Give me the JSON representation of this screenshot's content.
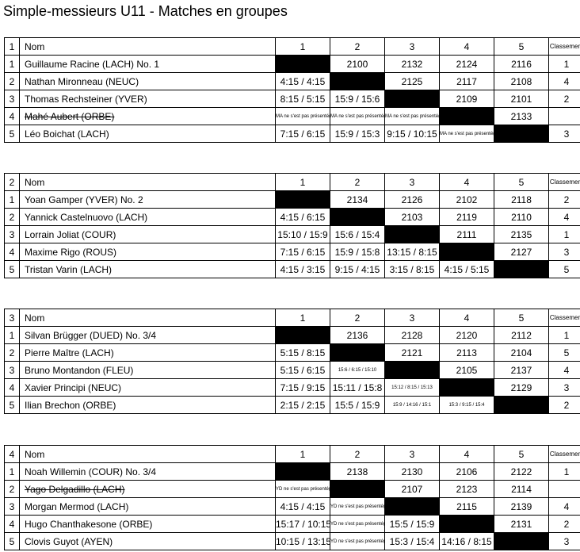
{
  "title": "Simple-messieurs U11 - Matches en groupes",
  "header": {
    "name": "Nom",
    "cols": [
      "1",
      "2",
      "3",
      "4",
      "5"
    ],
    "rank": "Classement"
  },
  "groups": [
    {
      "number": "1",
      "rows": [
        {
          "pos": "1",
          "name": "Guillaume Racine (LACH) No. 1",
          "withdrawn": false,
          "cells": [
            null,
            "2100",
            "2132",
            "2124",
            "2116"
          ],
          "rank": "1"
        },
        {
          "pos": "2",
          "name": "Nathan Mironneau (NEUC)",
          "withdrawn": false,
          "cells": [
            "4:15 / 4:15",
            null,
            "2125",
            "2117",
            "2108"
          ],
          "rank": "4"
        },
        {
          "pos": "3",
          "name": "Thomas Rechsteiner (YVER)",
          "withdrawn": false,
          "cells": [
            "8:15 / 5:15",
            "15:9 / 15:6",
            null,
            "2109",
            "2101"
          ],
          "rank": "2"
        },
        {
          "pos": "4",
          "name": "Mahé Aubert (ORBE)",
          "withdrawn": true,
          "cells": [
            "MA ne s'est pas présenté(e)",
            "MA ne s'est pas présenté(e)",
            "MA ne s'est pas présenté(e)",
            null,
            "2133"
          ],
          "rank": ""
        },
        {
          "pos": "5",
          "name": "Léo Boichat (LACH)",
          "withdrawn": false,
          "cells": [
            "7:15 / 6:15",
            "15:9 / 15:3",
            "9:15 / 10:15",
            "MA ne s'est pas présenté(e)",
            null
          ],
          "rank": "3"
        }
      ]
    },
    {
      "number": "2",
      "rows": [
        {
          "pos": "1",
          "name": "Yoan Gamper (YVER) No. 2",
          "withdrawn": false,
          "cells": [
            null,
            "2134",
            "2126",
            "2102",
            "2118"
          ],
          "rank": "2"
        },
        {
          "pos": "2",
          "name": "Yannick Castelnuovo (LACH)",
          "withdrawn": false,
          "cells": [
            "4:15 / 6:15",
            null,
            "2103",
            "2119",
            "2110"
          ],
          "rank": "4"
        },
        {
          "pos": "3",
          "name": "Lorrain Joliat (COUR)",
          "withdrawn": false,
          "cells": [
            "15:10 / 15:9",
            "15:6 / 15:4",
            null,
            "2111",
            "2135"
          ],
          "rank": "1"
        },
        {
          "pos": "4",
          "name": "Maxime Rigo (ROUS)",
          "withdrawn": false,
          "cells": [
            "7:15 / 6:15",
            "15:9 / 15:8",
            "13:15 / 8:15",
            null,
            "2127"
          ],
          "rank": "3"
        },
        {
          "pos": "5",
          "name": "Tristan Varin (LACH)",
          "withdrawn": false,
          "cells": [
            "4:15 / 3:15",
            "9:15 / 4:15",
            "3:15 / 8:15",
            "4:15 / 5:15",
            null
          ],
          "rank": "5"
        }
      ]
    },
    {
      "number": "3",
      "rows": [
        {
          "pos": "1",
          "name": "Silvan Brügger (DUED) No. 3/4",
          "withdrawn": false,
          "cells": [
            null,
            "2136",
            "2128",
            "2120",
            "2112"
          ],
          "rank": "1"
        },
        {
          "pos": "2",
          "name": "Pierre Maître (LACH)",
          "withdrawn": false,
          "cells": [
            "5:15 / 8:15",
            null,
            "2121",
            "2113",
            "2104"
          ],
          "rank": "5"
        },
        {
          "pos": "3",
          "name": "Bruno Montandon (FLEU)",
          "withdrawn": false,
          "cells": [
            "5:15 / 6:15",
            "15:6 / 6:15 / 15:10",
            null,
            "2105",
            "2137"
          ],
          "rank": "4"
        },
        {
          "pos": "4",
          "name": "Xavier Principi (NEUC)",
          "withdrawn": false,
          "cells": [
            "7:15 / 9:15",
            "15:11 / 15:8",
            "15:12 / 8:15 / 15:13",
            null,
            "2129"
          ],
          "rank": "3"
        },
        {
          "pos": "5",
          "name": "Ilian Brechon (ORBE)",
          "withdrawn": false,
          "cells": [
            "2:15 / 2:15",
            "15:5 / 15:9",
            "15:9 / 14:16 / 15:1",
            "15:3 / 9:15 / 15:4",
            null
          ],
          "rank": "2"
        }
      ]
    },
    {
      "number": "4",
      "rows": [
        {
          "pos": "1",
          "name": "Noah Willemin (COUR) No. 3/4",
          "withdrawn": false,
          "cells": [
            null,
            "2138",
            "2130",
            "2106",
            "2122"
          ],
          "rank": "1"
        },
        {
          "pos": "2",
          "name": "Yago Delgadillo (LACH)",
          "withdrawn": true,
          "cells": [
            "YD ne s'est pas présenté(e)",
            null,
            "2107",
            "2123",
            "2114"
          ],
          "rank": ""
        },
        {
          "pos": "3",
          "name": "Morgan Mermod (LACH)",
          "withdrawn": false,
          "cells": [
            "4:15 / 4:15",
            "YD ne s'est pas présenté(e)",
            null,
            "2115",
            "2139"
          ],
          "rank": "4"
        },
        {
          "pos": "4",
          "name": "Hugo Chanthakesone (ORBE)",
          "withdrawn": false,
          "cells": [
            "15:17 / 10:15",
            "YD ne s'est pas présenté(e)",
            "15:5 / 15:9",
            null,
            "2131"
          ],
          "rank": "2"
        },
        {
          "pos": "5",
          "name": "Clovis Guyot (AYEN)",
          "withdrawn": false,
          "cells": [
            "10:15 / 13:15",
            "YD ne s'est pas présenté(e)",
            "15:3 / 15:4",
            "14:16 / 8:15",
            null
          ],
          "rank": "3"
        }
      ]
    }
  ]
}
